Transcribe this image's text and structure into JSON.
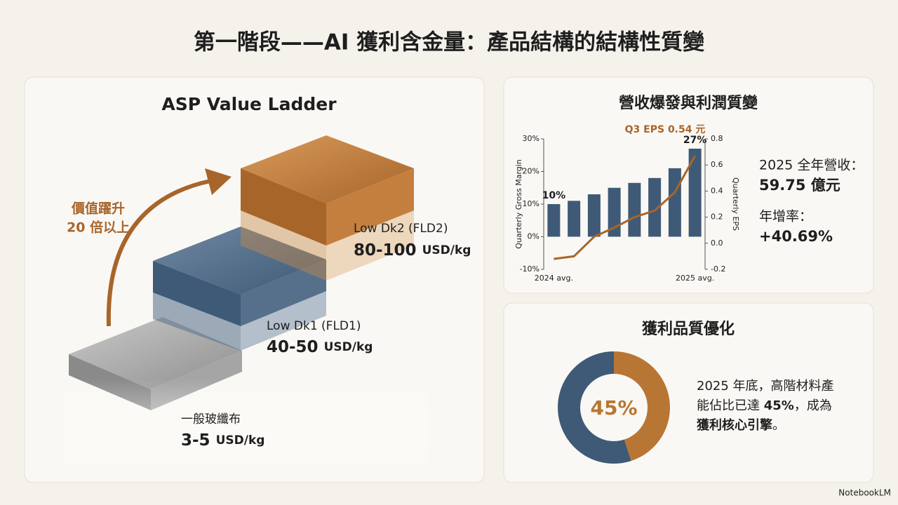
{
  "title": "第一階段——AI 獲利含金量：產品結構的結構性質變",
  "ladder": {
    "title": "ASP Value Ladder",
    "arrow_label": [
      "價值躍升",
      "20 倍以上"
    ],
    "steps": [
      {
        "name": "一般玻纖布",
        "price": "3-5",
        "unit": "USD/kg"
      },
      {
        "name": "Low Dk1 (FLD1)",
        "price": "40-50",
        "unit": "USD/kg"
      },
      {
        "name": "Low Dk2 (FLD2)",
        "price": "80-100",
        "unit": "USD/kg"
      }
    ]
  },
  "chart_data": [
    {
      "type": "bar",
      "title": "營收爆發與利潤質變",
      "categories": [
        "2024 avg.",
        null,
        null,
        null,
        null,
        null,
        null,
        "2025 avg."
      ],
      "ylabel": "Quarterly Gross Margin",
      "y2label": "Quarterly EPS",
      "ylim": [
        -10,
        30
      ],
      "yticks": [
        {
          "value": -10,
          "label": "-10%"
        },
        {
          "value": 0,
          "label": "0%"
        },
        {
          "value": 10,
          "label": "10%"
        },
        {
          "value": 20,
          "label": "20%"
        },
        {
          "value": 30,
          "label": "30%"
        }
      ],
      "y2lim": [
        -0.2,
        0.8
      ],
      "y2ticks": [
        -0.2,
        {
          "value": 0,
          "label": "0.0"
        },
        0.2,
        0.4,
        0.6,
        0.8
      ],
      "annotation": "Q3 EPS 0.54 元",
      "series": [
        {
          "type": "bar",
          "color": "#3f5a76",
          "values": [
            10,
            11,
            13,
            15,
            16.5,
            18,
            21,
            27
          ],
          "value_labels": [
            "10%",
            null,
            null,
            null,
            null,
            null,
            null,
            "27%"
          ]
        },
        {
          "type": "line",
          "axis": "y2",
          "color": "#a8652a",
          "values": [
            -0.12,
            -0.1,
            0.05,
            0.12,
            0.2,
            0.25,
            0.39,
            0.67
          ]
        }
      ]
    },
    {
      "type": "pie",
      "title": "獲利品質優化",
      "values": [
        45,
        55
      ],
      "colors": [
        "#b87634",
        "#3f5a76"
      ],
      "value_labels": [
        "45%",
        null
      ]
    }
  ],
  "revenue": {
    "label": "2025 全年營收：",
    "value": "59.75 億元",
    "growth_label": "年增率：",
    "growth": "+40.69%"
  },
  "note": [
    "2025 年底，高階材料產",
    "能佔比已達 ",
    "45%",
    "，成為",
    "獲利核心引擎",
    "。"
  ],
  "brand": "NotebookLM"
}
